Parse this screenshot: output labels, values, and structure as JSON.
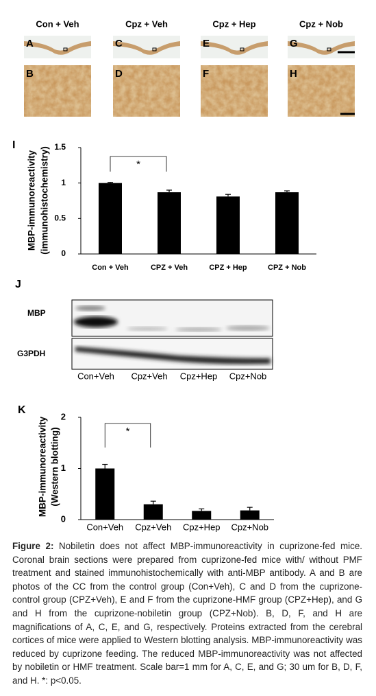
{
  "micrographs": {
    "columns": [
      "Con + Veh",
      "Cpz + Veh",
      "Cpz + Hep",
      "Cpz + Nob"
    ],
    "letters": [
      [
        "A",
        "C",
        "E",
        "G"
      ],
      [
        "B",
        "D",
        "F",
        "H"
      ]
    ]
  },
  "chart_data": [
    {
      "type": "bar",
      "panel_label": "I",
      "ylabel": [
        "MBP-immunoreactivity",
        "(immunohistochemistry)"
      ],
      "categories": [
        "Con + Veh",
        "CPZ + Veh",
        "CPZ + Hep",
        "CPZ + Nob"
      ],
      "values": [
        1.0,
        0.87,
        0.81,
        0.87
      ],
      "errors": [
        0.01,
        0.03,
        0.03,
        0.02
      ],
      "color": "#000000",
      "ylim": [
        0,
        1.5
      ],
      "yticks": [
        0,
        0.5,
        1,
        1.5
      ],
      "grid": false,
      "annotation": "*"
    },
    {
      "type": "bar",
      "panel_label": "K",
      "ylabel": [
        "MBP-immunoreactivity",
        "(Western blotting)"
      ],
      "categories": [
        "Con+Veh",
        "Cpz+Veh",
        "Cpz+Hep",
        "Cpz+Nob"
      ],
      "values": [
        1.0,
        0.3,
        0.17,
        0.18
      ],
      "errors": [
        0.08,
        0.06,
        0.04,
        0.06
      ],
      "color": "#000000",
      "ylim": [
        0,
        2
      ],
      "yticks": [
        0,
        1,
        2
      ],
      "grid": false,
      "annotation": "*"
    }
  ],
  "blot": {
    "label": "J",
    "rows": [
      "MBP",
      "G3PDH"
    ],
    "lanes": [
      "Con+Veh",
      "Cpz+Veh",
      "Cpz+Hep",
      "Cpz+Nob"
    ]
  },
  "caption": {
    "label": "Figure 2:",
    "text": "Nobiletin does not affect MBP-immunoreactivity in cuprizone-fed mice. Coronal brain sections were prepared from cuprizone-fed mice with/ without PMF treatment and stained immunohistochemically with anti-MBP antibody. A and B are photos of the CC from the control group (Con+Veh), C and D from the cuprizone-control group (CPZ+Veh), E and F from the cuprizone-HMF group (CPZ+Hep), and G and H from the cuprizone-nobiletin group (CPZ+Nob). B, D, F, and H are magnifications of A, C, E, and G, respectively. Proteins extracted from the cerebral cortices of mice were applied to Western blotting analysis. MBP-immunoreactivity was reduced by cuprizone feeding. The reduced MBP-immunoreactivity was not affected by nobiletin or HMF treatment. Scale bar=1 mm for A, C, E, and G; 30 um for B, D, F, and H. *: p<0.05."
  }
}
